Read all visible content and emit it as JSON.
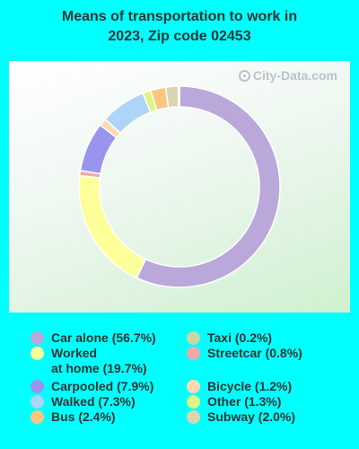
{
  "chart_data": {
    "type": "pie",
    "style": "donut",
    "title_lines": [
      "Means of transportation to work in",
      "2023, Zip code 02453"
    ],
    "watermark": "City-Data.com",
    "slices": [
      {
        "name": "Car alone",
        "value": 56.7,
        "label": "Car alone (56.7%)",
        "color": "#BBA8DA"
      },
      {
        "name": "Worked at home",
        "value": 19.7,
        "label": "Worked\nat home (19.7%)",
        "color": "#FFFF99"
      },
      {
        "name": "Carpooled",
        "value": 7.9,
        "label": "Carpooled (7.9%)",
        "color": "#9A94EE"
      },
      {
        "name": "Walked",
        "value": 7.3,
        "label": "Walked (7.3%)",
        "color": "#AED4F8"
      },
      {
        "name": "Bus",
        "value": 2.4,
        "label": "Bus (2.4%)",
        "color": "#FFC77E"
      },
      {
        "name": "Taxi",
        "value": 0.2,
        "label": "Taxi (0.2%)",
        "color": "#C6D8A6"
      },
      {
        "name": "Streetcar",
        "value": 0.8,
        "label": "Streetcar (0.8%)",
        "color": "#F2A8A8"
      },
      {
        "name": "Bicycle",
        "value": 1.2,
        "label": "Bicycle (1.2%)",
        "color": "#FFD9B3"
      },
      {
        "name": "Other",
        "value": 1.3,
        "label": "Other (1.3%)",
        "color": "#DDF584"
      },
      {
        "name": "Subway",
        "value": 2.0,
        "label": "Subway (2.0%)",
        "color": "#DAD5B0"
      }
    ],
    "draw_order": [
      "Car alone",
      "Worked at home",
      "Streetcar",
      "Carpooled",
      "Bicycle",
      "Walked",
      "Other",
      "Bus",
      "Subway",
      "Taxi"
    ]
  }
}
